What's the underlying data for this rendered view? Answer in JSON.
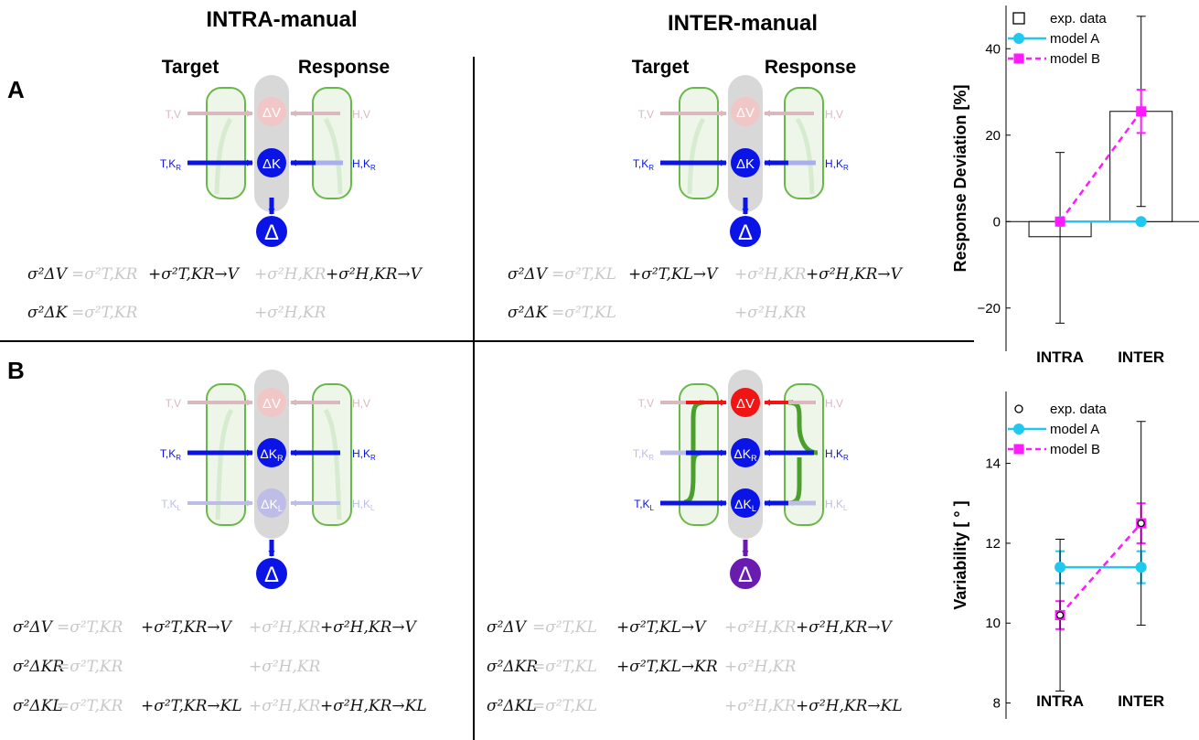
{
  "headers": {
    "intra": "INTRA-manual",
    "inter": "INTER-manual",
    "target": "Target",
    "response": "Response",
    "panel_a": "A",
    "panel_b": "B"
  },
  "node_labels": {
    "dv": "ΔV",
    "dk": "ΔK",
    "dkr_base": "ΔK",
    "dkr_sub": "R",
    "dkl_base": "ΔK",
    "dkl_sub": "L",
    "delta": "Δ"
  },
  "inputs": {
    "tv": "T,V",
    "hv": "H,V",
    "tk": "T,K",
    "hk": "H,K",
    "r": "R",
    "l": "L"
  },
  "equations": {
    "a_intra": [
      {
        "lhs": "σ²ΔV",
        "terms": [
          [
            "=σ²T,KR",
            "faint"
          ],
          [
            "+σ²T,KR→V",
            "dark"
          ],
          [
            "+σ²H,KR",
            "faint"
          ],
          [
            "+σ²H,KR→V",
            "dark"
          ]
        ]
      },
      {
        "lhs": "σ²ΔK",
        "terms": [
          [
            "=σ²T,KR",
            "faint"
          ],
          [
            "",
            ""
          ],
          [
            "+σ²H,KR",
            "faint"
          ],
          [
            "",
            ""
          ]
        ]
      }
    ],
    "a_inter": [
      {
        "lhs": "σ²ΔV",
        "terms": [
          [
            "=σ²T,KL",
            "faint"
          ],
          [
            "+σ²T,KL→V",
            "dark"
          ],
          [
            "+σ²H,KR",
            "faint"
          ],
          [
            "+σ²H,KR→V",
            "dark"
          ]
        ]
      },
      {
        "lhs": "σ²ΔK",
        "terms": [
          [
            "=σ²T,KL",
            "faint"
          ],
          [
            "",
            ""
          ],
          [
            "+σ²H,KR",
            "faint"
          ],
          [
            "",
            ""
          ]
        ]
      }
    ],
    "b_intra": [
      {
        "lhs": "σ²ΔV",
        "terms": [
          [
            "=σ²T,KR",
            "faint"
          ],
          [
            "+σ²T,KR→V",
            "dark"
          ],
          [
            "+σ²H,KR",
            "faint"
          ],
          [
            "+σ²H,KR→V",
            "dark"
          ]
        ]
      },
      {
        "lhs": "σ²ΔKR",
        "terms": [
          [
            "=σ²T,KR",
            "faint"
          ],
          [
            "",
            ""
          ],
          [
            "+σ²H,KR",
            "faint"
          ],
          [
            "",
            ""
          ]
        ]
      },
      {
        "lhs": "σ²ΔKL",
        "terms": [
          [
            "=σ²T,KR",
            "faint"
          ],
          [
            "+σ²T,KR→KL",
            "dark"
          ],
          [
            "+σ²H,KR",
            "faint"
          ],
          [
            "+σ²H,KR→KL",
            "dark"
          ]
        ]
      }
    ],
    "b_inter": [
      {
        "lhs": "σ²ΔV",
        "terms": [
          [
            "=σ²T,KL",
            "faint"
          ],
          [
            "+σ²T,KL→V",
            "dark"
          ],
          [
            "+σ²H,KR",
            "faint"
          ],
          [
            "+σ²H,KR→V",
            "dark"
          ]
        ]
      },
      {
        "lhs": "σ²ΔKR",
        "terms": [
          [
            "=σ²T,KL",
            "faint"
          ],
          [
            "+σ²T,KL→KR",
            "dark"
          ],
          [
            "+σ²H,KR",
            "faint"
          ],
          [
            "",
            ""
          ]
        ]
      },
      {
        "lhs": "σ²ΔKL",
        "terms": [
          [
            "=σ²T,KL",
            "faint"
          ],
          [
            "",
            ""
          ],
          [
            "+σ²H,KR",
            "faint"
          ],
          [
            "+σ²H,KR→KL",
            "dark"
          ]
        ]
      }
    ]
  },
  "colors": {
    "blue": "#0a14e6",
    "green": "#4aa02c",
    "red": "#f01414",
    "purple": "#6a1cb0",
    "cyan": "#1ec8f0",
    "magenta": "#ff1aff"
  },
  "chart_data": [
    {
      "type": "bar",
      "categories": [
        "INTRA",
        "INTER"
      ],
      "ylabel": "Response Deviation [%]",
      "ylim": [
        -30,
        50
      ],
      "yticks": [
        -20,
        0,
        20,
        40
      ],
      "ytick_labels": [
        "−20",
        "0",
        "20",
        "40"
      ],
      "legend": [
        "exp. data",
        "model A",
        "model B"
      ],
      "legend_position": "top-left",
      "series": [
        {
          "name": "exp. data",
          "values": [
            -3.5,
            25.5
          ],
          "err_low": [
            -23.5,
            3.5
          ],
          "err_high": [
            16,
            47.5
          ]
        },
        {
          "name": "model A",
          "values": [
            0,
            0
          ]
        },
        {
          "name": "model B",
          "values": [
            0,
            25.5
          ],
          "err_low": [
            null,
            20.5
          ],
          "err_high": [
            null,
            30.5
          ]
        }
      ]
    },
    {
      "type": "line",
      "categories": [
        "INTRA",
        "INTER"
      ],
      "ylabel": "Variability [ ° ]",
      "ylim": [
        7.6,
        15.8
      ],
      "yticks": [
        8,
        10,
        12,
        14
      ],
      "ytick_labels": [
        "8",
        "10",
        "12",
        "14"
      ],
      "legend": [
        "exp. data",
        "model A",
        "model B"
      ],
      "legend_position": "top-left",
      "series": [
        {
          "name": "exp. data",
          "values": [
            10.2,
            12.5
          ],
          "err_low": [
            8.3,
            9.95
          ],
          "err_high": [
            12.1,
            15.05
          ]
        },
        {
          "name": "model A",
          "values": [
            11.4,
            11.4
          ],
          "err_low": [
            11.0,
            11.0
          ],
          "err_high": [
            11.8,
            11.8
          ]
        },
        {
          "name": "model B",
          "values": [
            10.2,
            12.5
          ],
          "err_low": [
            9.85,
            12.0
          ],
          "err_high": [
            10.55,
            13.0
          ]
        }
      ]
    }
  ]
}
